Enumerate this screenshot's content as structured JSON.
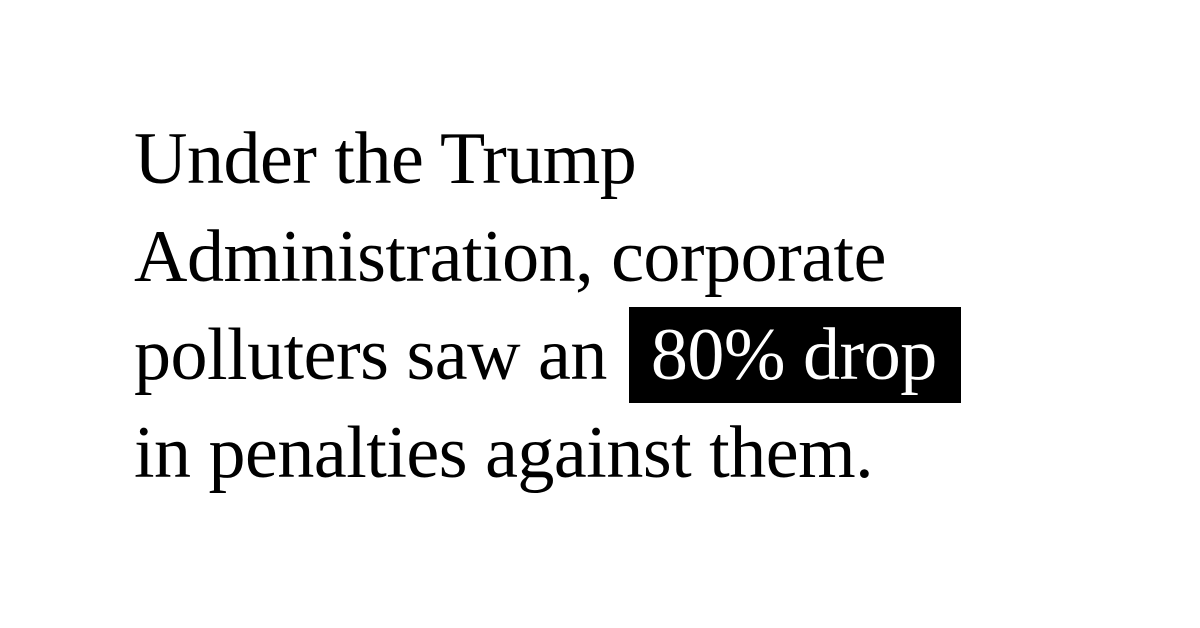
{
  "statement": {
    "line1": "Under the Trump",
    "line2": "Administration, corporate",
    "line3_before": "polluters saw an",
    "highlight": "80% drop",
    "line4": "in penalties against them."
  },
  "colors": {
    "background": "#ffffff",
    "text": "#000000",
    "highlight_background": "#000000",
    "highlight_text": "#ffffff"
  }
}
